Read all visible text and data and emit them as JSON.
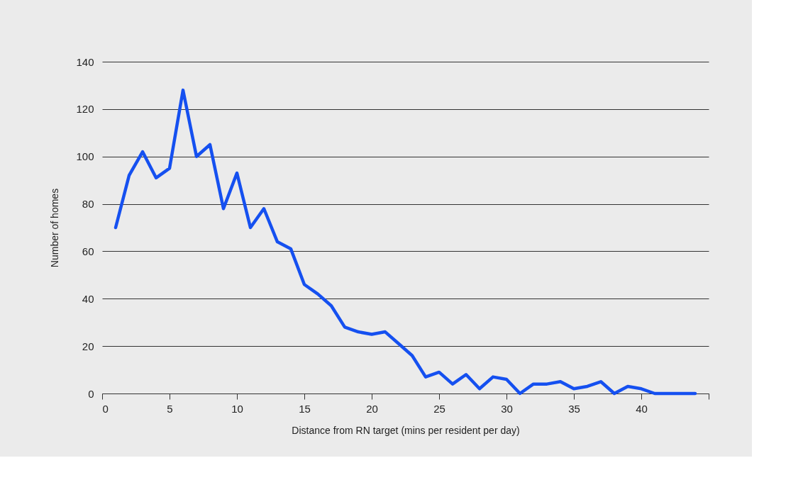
{
  "chart_data": {
    "type": "line",
    "xlabel": "Distance from RN target (mins per resident per day)",
    "ylabel": "Number of homes",
    "x": [
      1,
      2,
      3,
      4,
      5,
      6,
      7,
      8,
      9,
      10,
      11,
      12,
      13,
      14,
      15,
      16,
      17,
      18,
      19,
      20,
      21,
      22,
      23,
      24,
      25,
      26,
      27,
      28,
      29,
      30,
      31,
      32,
      33,
      34,
      35,
      36,
      37,
      38,
      39,
      40,
      41,
      42,
      43,
      44
    ],
    "series": [
      {
        "color": "#1550f0",
        "values": [
          70,
          92,
          102,
          91,
          95,
          128,
          100,
          105,
          78,
          93,
          70,
          78,
          64,
          61,
          46,
          42,
          37,
          28,
          26,
          25,
          26,
          21,
          16,
          7,
          9,
          4,
          8,
          2,
          7,
          6,
          0,
          4,
          4,
          5,
          2,
          3,
          5,
          0,
          3,
          2,
          0,
          0,
          0,
          0
        ]
      }
    ],
    "xlim": [
      0,
      45
    ],
    "xticks": [
      0,
      5,
      10,
      15,
      20,
      25,
      30,
      35,
      40,
      {
        "value": 45,
        "label": null
      }
    ],
    "ylim": [
      0,
      140
    ],
    "yticks": [
      0,
      20,
      40,
      60,
      80,
      100,
      120,
      140
    ],
    "grid": "y",
    "legend": false,
    "marker": "none",
    "line_style": "solid"
  }
}
